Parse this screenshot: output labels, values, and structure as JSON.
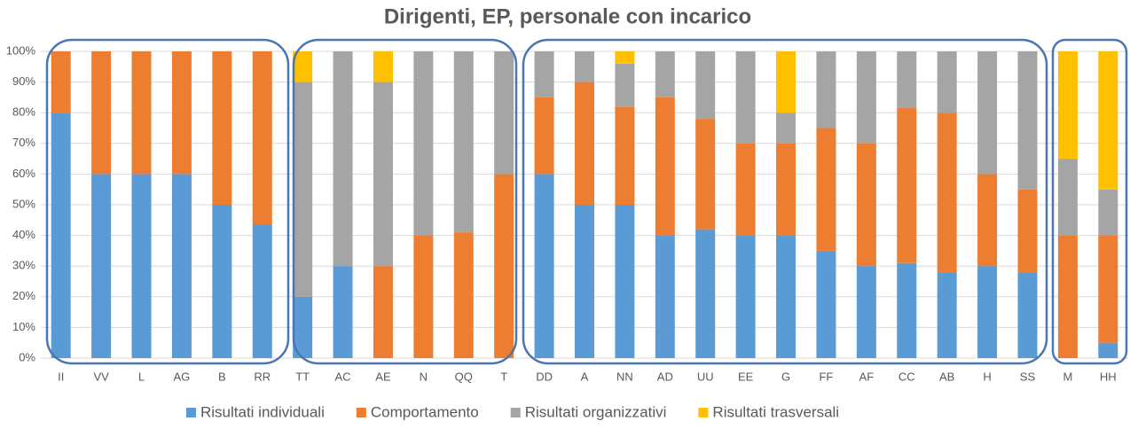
{
  "chart_data": {
    "type": "stacked_bar",
    "title": "Dirigenti, EP, personale con incarico",
    "categories": [
      "II",
      "VV",
      "L",
      "AG",
      "B",
      "RR",
      "TT",
      "AC",
      "AE",
      "N",
      "QQ",
      "T",
      "DD",
      "A",
      "NN",
      "AD",
      "UU",
      "EE",
      "G",
      "FF",
      "AF",
      "CC",
      "AB",
      "H",
      "SS",
      "M",
      "HH"
    ],
    "series": [
      {
        "name": "Risultati individuali",
        "color": "#5b9bd5",
        "values": [
          80,
          60,
          60,
          60,
          50,
          43.5,
          20,
          30,
          0,
          0,
          0,
          0,
          60,
          50,
          50,
          40,
          42,
          40,
          40,
          35,
          30,
          31,
          28,
          30,
          28,
          0,
          5
        ]
      },
      {
        "name": "Comportamento",
        "color": "#ed7d31",
        "values": [
          20,
          40,
          40,
          40,
          50,
          56.5,
          0,
          0,
          30,
          40,
          41,
          60,
          25,
          40,
          32,
          45,
          36,
          30,
          30,
          40,
          40,
          50.5,
          52,
          30,
          27,
          40,
          35
        ]
      },
      {
        "name": "Risultati organizzativi",
        "color": "#a5a5a5",
        "values": [
          0,
          0,
          0,
          0,
          0,
          0,
          70,
          70,
          60,
          60,
          59,
          40,
          15,
          10,
          14,
          15,
          22,
          30,
          10,
          25,
          30,
          18.5,
          20,
          40,
          45,
          25,
          15
        ]
      },
      {
        "name": "Risultati trasversali",
        "color": "#ffc000",
        "values": [
          0,
          0,
          0,
          0,
          0,
          0,
          10,
          0,
          10,
          0,
          0,
          0,
          0,
          0,
          4,
          0,
          0,
          0,
          20,
          0,
          0,
          0,
          0,
          0,
          0,
          35,
          45
        ]
      }
    ],
    "ylim": [
      0,
      100
    ],
    "yticks": [
      {
        "value": 0,
        "label": "0%"
      },
      {
        "value": 10,
        "label": "10%"
      },
      {
        "value": 20,
        "label": "20%"
      },
      {
        "value": 30,
        "label": "30%"
      },
      {
        "value": 40,
        "label": "40%"
      },
      {
        "value": 50,
        "label": "50%"
      },
      {
        "value": 60,
        "label": "60%"
      },
      {
        "value": 70,
        "label": "70%"
      },
      {
        "value": 80,
        "label": "80%"
      },
      {
        "value": 90,
        "label": "90%"
      },
      {
        "value": 100,
        "label": "100%"
      }
    ],
    "grid": true,
    "legend": "bottom"
  }
}
